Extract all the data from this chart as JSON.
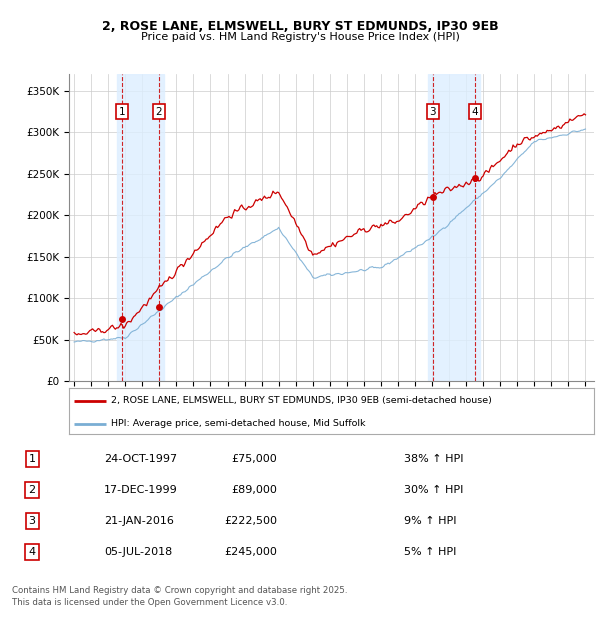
{
  "title_line1": "2, ROSE LANE, ELMSWELL, BURY ST EDMUNDS, IP30 9EB",
  "title_line2": "Price paid vs. HM Land Registry's House Price Index (HPI)",
  "ylim": [
    0,
    370000
  ],
  "yticks": [
    0,
    50000,
    100000,
    150000,
    200000,
    250000,
    300000,
    350000
  ],
  "ytick_labels": [
    "£0",
    "£50K",
    "£100K",
    "£150K",
    "£200K",
    "£250K",
    "£300K",
    "£350K"
  ],
  "sale_dates_num": [
    1997.81,
    1999.96,
    2016.05,
    2018.51
  ],
  "sale_prices": [
    75000,
    89000,
    222500,
    245000
  ],
  "sale_labels": [
    "1",
    "2",
    "3",
    "4"
  ],
  "hpi_color": "#7aaed4",
  "price_color": "#cc0000",
  "annotation_box_color": "#cc0000",
  "shade_color": "#ddeeff",
  "grid_color": "#cccccc",
  "background_color": "#ffffff",
  "legend_label_price": "2, ROSE LANE, ELMSWELL, BURY ST EDMUNDS, IP30 9EB (semi-detached house)",
  "legend_label_hpi": "HPI: Average price, semi-detached house, Mid Suffolk",
  "table_data": [
    [
      "1",
      "24-OCT-1997",
      "£75,000",
      "38% ↑ HPI"
    ],
    [
      "2",
      "17-DEC-1999",
      "£89,000",
      "30% ↑ HPI"
    ],
    [
      "3",
      "21-JAN-2016",
      "£222,500",
      "9% ↑ HPI"
    ],
    [
      "4",
      "05-JUL-2018",
      "£245,000",
      "5% ↑ HPI"
    ]
  ],
  "footer": "Contains HM Land Registry data © Crown copyright and database right 2025.\nThis data is licensed under the Open Government Licence v3.0.",
  "xlim_start": 1994.7,
  "xlim_end": 2025.5
}
